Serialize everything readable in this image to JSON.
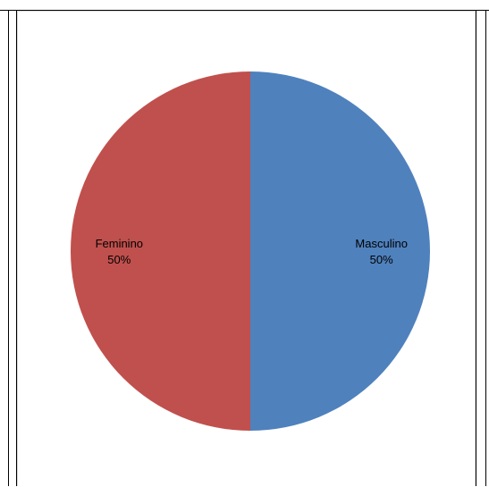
{
  "chart_data": {
    "type": "pie",
    "title": "",
    "categories": [
      "Masculino",
      "Feminino"
    ],
    "values": [
      50,
      50
    ],
    "percent_labels": [
      "50%",
      "50%"
    ],
    "colors": [
      "#4f81bd",
      "#c0504d"
    ],
    "legend": "none",
    "start_angle_deg": 0,
    "direction": "clockwise"
  }
}
